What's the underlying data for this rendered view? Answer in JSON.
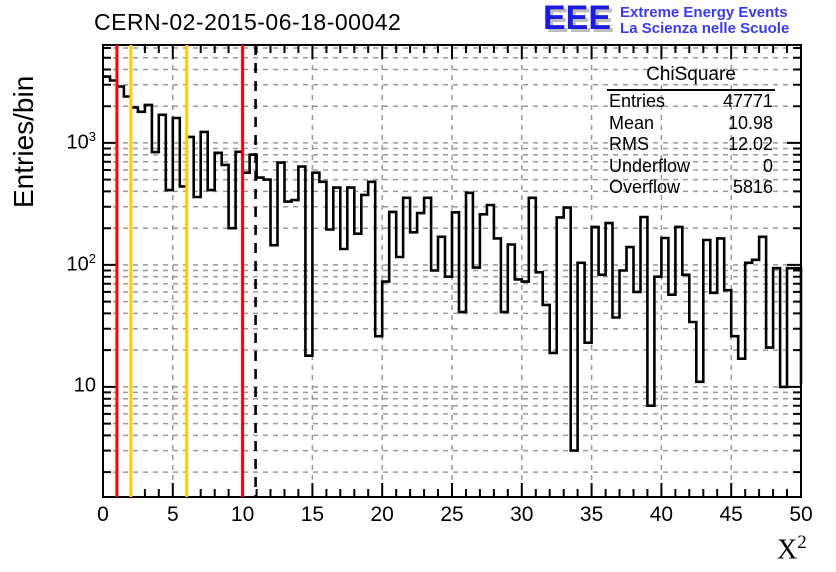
{
  "title": "CERN-02-2015-06-18-00042",
  "logo": {
    "acronym": "EEE",
    "line1": "Extreme Energy Events",
    "line2": "La Scienza nelle Scuole",
    "acronym_color": "#1c1ce0",
    "text_color": "#3a3af2"
  },
  "stats": {
    "title": "ChiSquare",
    "rows": [
      {
        "label": "Entries",
        "value": "47771"
      },
      {
        "label": "Mean",
        "value": "10.98"
      },
      {
        "label": "RMS",
        "value": "12.02"
      },
      {
        "label": "Underflow",
        "value": "0"
      },
      {
        "label": "Overflow",
        "value": "5816"
      }
    ]
  },
  "chart_data": {
    "type": "bar",
    "subtype": "step-histogram",
    "title": "CERN-02-2015-06-18-00042",
    "xlabel": "X^2",
    "xlabel_base": "X",
    "xlabel_exp": "2",
    "ylabel": "Entries/bin",
    "xlim": [
      0,
      50
    ],
    "ylim": [
      1.25,
      6350
    ],
    "ylog": true,
    "grid": true,
    "x_ticks": [
      0,
      5,
      10,
      15,
      20,
      25,
      30,
      35,
      40,
      45,
      50
    ],
    "x_minor_step": 1,
    "y_ticks": [
      {
        "value": 10,
        "base": "10",
        "exp": ""
      },
      {
        "value": 100,
        "base": "10",
        "exp": "2"
      },
      {
        "value": 1000,
        "base": "10",
        "exp": "3"
      }
    ],
    "bins": {
      "start": 0,
      "width": 0.5,
      "values": [
        3500,
        3250,
        2900,
        2400,
        1950,
        1800,
        2050,
        840,
        1700,
        410,
        1600,
        440,
        1120,
        360,
        1230,
        410,
        830,
        660,
        200,
        845,
        570,
        800,
        520,
        500,
        145,
        690,
        330,
        340,
        640,
        18,
        570,
        480,
        195,
        430,
        135,
        430,
        180,
        375,
        480,
        26,
        73,
        272,
        116,
        355,
        185,
        266,
        355,
        90,
        170,
        80,
        270,
        41,
        390,
        95,
        260,
        310,
        165,
        41,
        147,
        76,
        73,
        355,
        87,
        47,
        19,
        245,
        295,
        3,
        104,
        23,
        205,
        83,
        220,
        37,
        90,
        140,
        60,
        247,
        7,
        80,
        166,
        57,
        205,
        83,
        34,
        11,
        160,
        59,
        165,
        62,
        26,
        17,
        104,
        110,
        170,
        21,
        94,
        10,
        94,
        94
      ]
    },
    "right_edge_drop": 10.5,
    "vlines": [
      {
        "x": 1,
        "color": "#ff0000",
        "dash": ""
      },
      {
        "x": 2,
        "color": "#ffcc00",
        "dash": ""
      },
      {
        "x": 6,
        "color": "#ffcc00",
        "dash": ""
      },
      {
        "x": 10,
        "color": "#ff0000",
        "dash": ""
      },
      {
        "x": 10.93,
        "color": "#000000",
        "dash": "10 8"
      }
    ],
    "colors": {
      "hist": "#000000",
      "grid": "#999999",
      "frame": "#000000"
    },
    "legend": null
  }
}
